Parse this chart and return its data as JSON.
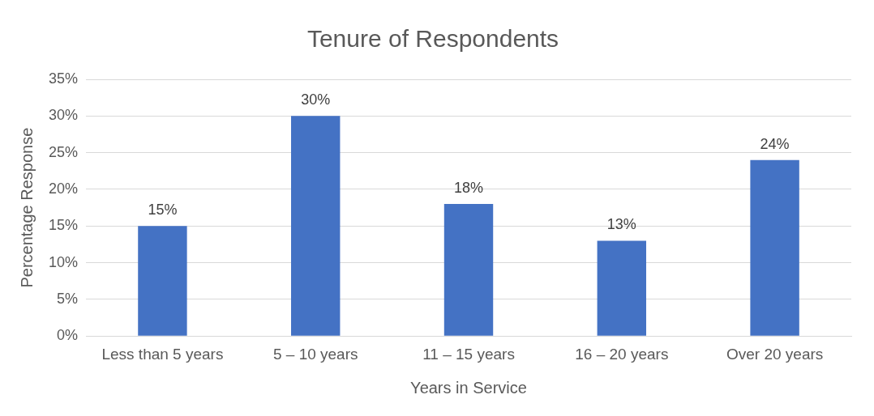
{
  "chart_data": {
    "type": "bar",
    "title": "Tenure of Respondents",
    "xlabel": "Years in Service",
    "ylabel": "Percentage Response",
    "categories": [
      "Less than 5 years",
      "5 – 10 years",
      "11 – 15 years",
      "16 – 20 years",
      "Over 20 years"
    ],
    "values": [
      15,
      30,
      18,
      13,
      24
    ],
    "color": "#4472c4",
    "value_labels": [
      "15%",
      "30%",
      "18%",
      "13%",
      "24%"
    ],
    "ylim": [
      0,
      35
    ],
    "yticks": [
      {
        "value": 0,
        "label": "0%"
      },
      {
        "value": 5,
        "label": "5%"
      },
      {
        "value": 10,
        "label": "10%"
      },
      {
        "value": 15,
        "label": "15%"
      },
      {
        "value": 20,
        "label": "20%"
      },
      {
        "value": 25,
        "label": "25%"
      },
      {
        "value": 30,
        "label": "30%"
      },
      {
        "value": 35,
        "label": "35%"
      }
    ],
    "grid": "y",
    "legend": false
  }
}
